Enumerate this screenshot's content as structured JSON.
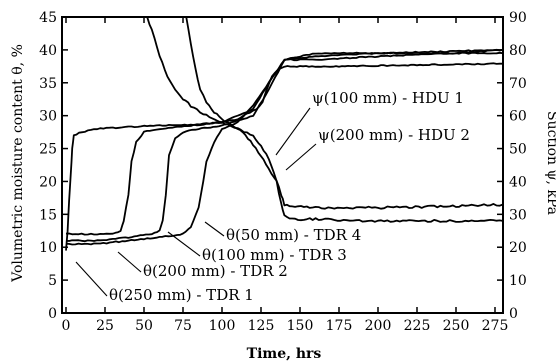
{
  "chart_data": {
    "type": "line",
    "xlabel": "Time, hrs",
    "ylabel_left": "Volumetric moisture content θ, %",
    "ylabel_right": "Suction ψ, kPa",
    "xlim": [
      0,
      280
    ],
    "ylim_left": [
      0,
      45
    ],
    "ylim_right": [
      0,
      90
    ],
    "x_ticks": [
      "0",
      "25",
      "50",
      "75",
      "100",
      "125",
      "150",
      "175",
      "200",
      "225",
      "250",
      "275"
    ],
    "y_left_ticks": [
      "0",
      "5",
      "10",
      "15",
      "20",
      "25",
      "30",
      "35",
      "40",
      "45"
    ],
    "y_right_ticks": [
      "0",
      "10",
      "20",
      "30",
      "40",
      "50",
      "60",
      "70",
      "80",
      "90"
    ],
    "grid": false,
    "series": [
      {
        "name": "θ(250 mm) - TDR 1",
        "axis": "left",
        "x": [
          0,
          1,
          2,
          3,
          4,
          5,
          10,
          20,
          40,
          60,
          80,
          100,
          110,
          118,
          122,
          126,
          128,
          132,
          136,
          140,
          150,
          175,
          200,
          225,
          250,
          280
        ],
        "y": [
          9.5,
          12.5,
          17,
          21,
          25,
          27,
          27.5,
          28,
          28.3,
          28.5,
          28.6,
          29,
          29.5,
          30.5,
          31,
          32,
          33.5,
          36,
          37,
          37.5,
          37.5,
          37.5,
          37.6,
          37.7,
          37.8,
          37.9
        ]
      },
      {
        "name": "θ(200 mm) - TDR 2",
        "axis": "left",
        "x": [
          0,
          10,
          20,
          30,
          35,
          37,
          40,
          42,
          45,
          50,
          60,
          80,
          100,
          120,
          130,
          140,
          160,
          200,
          250,
          280
        ],
        "y": [
          12,
          12,
          12,
          12,
          12.5,
          14,
          18,
          23,
          26,
          27.5,
          28,
          28.5,
          29,
          31,
          35,
          38.5,
          39,
          39.5,
          39.5,
          39.5
        ]
      },
      {
        "name": "θ(100 mm) - TDR 3",
        "axis": "left",
        "x": [
          0,
          20,
          40,
          55,
          60,
          62,
          64,
          66,
          70,
          75,
          85,
          100,
          120,
          130,
          140,
          160,
          200,
          250,
          280
        ],
        "y": [
          11,
          11,
          11.5,
          12,
          12.5,
          14,
          18,
          24,
          26.5,
          27.5,
          28,
          28.5,
          30,
          34,
          38.5,
          39.5,
          39.5,
          39.8,
          40
        ]
      },
      {
        "name": "θ(50 mm) - TDR 4",
        "axis": "left",
        "x": [
          0,
          20,
          40,
          60,
          75,
          80,
          85,
          88,
          90,
          95,
          100,
          110,
          120,
          130,
          140,
          160,
          200,
          250,
          280
        ],
        "y": [
          10.5,
          10.5,
          11,
          11.5,
          12,
          13,
          16,
          20,
          23,
          26,
          28,
          29,
          31.5,
          35,
          38.5,
          38.5,
          39,
          39.5,
          40
        ]
      },
      {
        "name": "ψ(100 mm) - HDU 1",
        "axis": "right",
        "x": [
          52,
          55,
          60,
          65,
          70,
          75,
          80,
          90,
          100,
          110,
          120,
          125,
          130,
          135,
          138,
          140,
          145,
          160,
          200,
          250,
          280
        ],
        "y": [
          90,
          86,
          78,
          72,
          68,
          65,
          63,
          60,
          58,
          56,
          54,
          51,
          47,
          40,
          33,
          30,
          28.5,
          28.5,
          28,
          28,
          28
        ]
      },
      {
        "name": "ψ(200 mm) - HDU 2",
        "axis": "right",
        "x": [
          77,
          80,
          83,
          86,
          90,
          95,
          100,
          110,
          115,
          120,
          125,
          130,
          135,
          138,
          140,
          145,
          160,
          200,
          250,
          280
        ],
        "y": [
          90,
          82,
          74,
          68,
          64,
          61,
          59,
          56,
          54,
          51,
          48,
          44,
          40,
          36,
          33,
          32.5,
          32,
          32,
          32.5,
          33
        ]
      }
    ],
    "annotations": [
      {
        "text": "ψ(100 mm) - HDU 1",
        "series": 4
      },
      {
        "text": "ψ(200 mm) - HDU 2",
        "series": 5
      },
      {
        "text": "θ(50 mm) - TDR 4",
        "series": 3
      },
      {
        "text": "θ(100 mm) - TDR 3",
        "series": 2
      },
      {
        "text": "θ(200 mm) - TDR 2",
        "series": 1
      },
      {
        "text": "θ(250 mm) - TDR 1",
        "series": 0
      }
    ]
  }
}
